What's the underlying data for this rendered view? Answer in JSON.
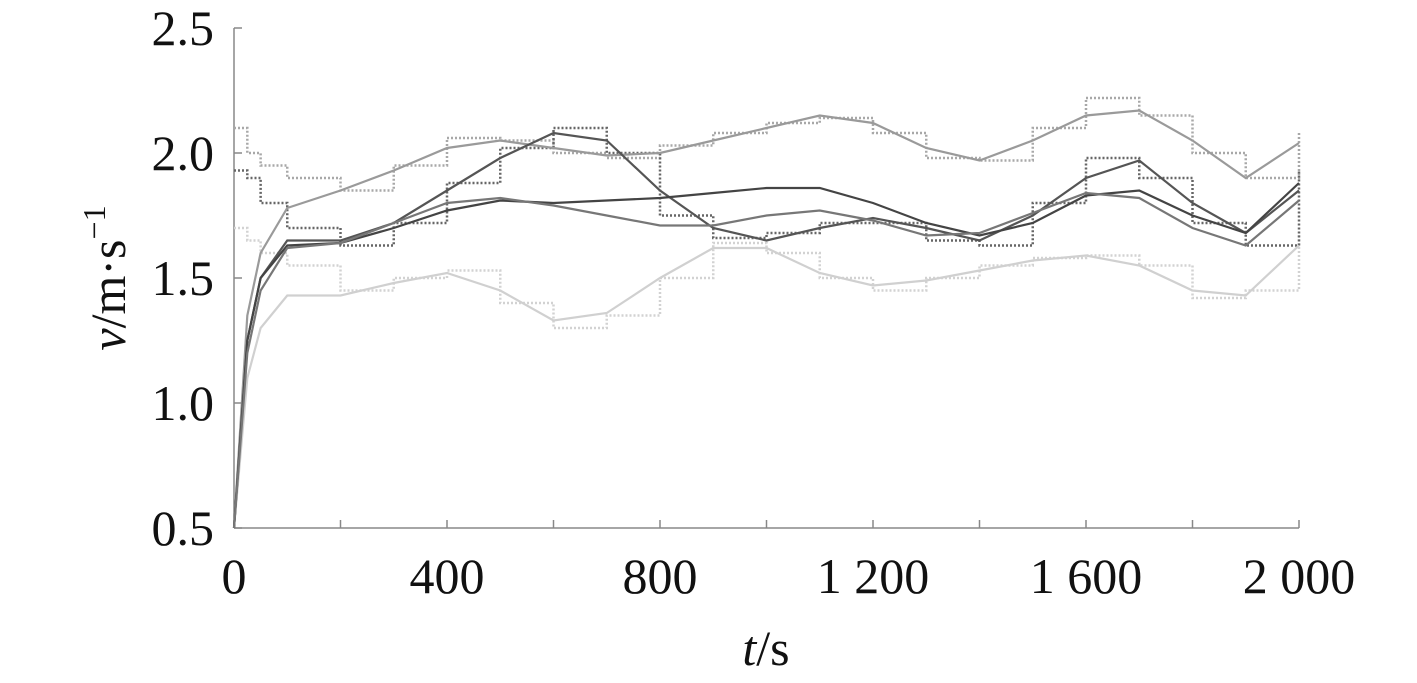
{
  "chart_data": {
    "type": "line",
    "xlabel": {
      "var": "t",
      "unit": "/s"
    },
    "ylabel": {
      "var": "v",
      "unit": "/m·s",
      "sup": "−1"
    },
    "x": [
      0,
      25,
      50,
      100,
      200,
      300,
      400,
      500,
      600,
      700,
      800,
      900,
      1000,
      1100,
      1200,
      1300,
      1400,
      1500,
      1600,
      1700,
      1800,
      1900,
      2000
    ],
    "xlim": [
      0,
      2000
    ],
    "xticks": [
      0,
      400,
      800,
      {
        "value": 1200,
        "label": "1 200"
      },
      {
        "value": 1600,
        "label": "1 600"
      },
      {
        "value": 2000,
        "label": "2 000"
      }
    ],
    "xminorticks": [
      200,
      600,
      1000,
      1400,
      1800
    ],
    "ylim": [
      0.5,
      2.5
    ],
    "yticks": [
      0.5,
      {
        "value": 1,
        "label": "1.0"
      },
      1.5,
      {
        "value": 2,
        "label": "2.0"
      },
      2.5
    ],
    "grid": false,
    "series": [
      {
        "color": "#d2d2d2",
        "dash": "dotted",
        "step": true,
        "values": [
          1.7,
          1.65,
          1.6,
          1.55,
          1.45,
          1.5,
          1.53,
          1.4,
          1.3,
          1.35,
          1.5,
          1.64,
          1.6,
          1.5,
          1.45,
          1.5,
          1.55,
          1.58,
          1.59,
          1.55,
          1.42,
          1.45,
          1.68
        ]
      },
      {
        "color": "#a8a8a8",
        "dash": "dotted",
        "step": true,
        "values": [
          2.1,
          2.0,
          1.95,
          1.9,
          1.85,
          1.95,
          2.06,
          2.05,
          2.0,
          1.98,
          2.03,
          2.08,
          2.12,
          2.14,
          2.08,
          1.98,
          1.97,
          2.1,
          2.22,
          2.15,
          2.0,
          1.9,
          2.08
        ]
      },
      {
        "color": "#666666",
        "dash": "dotted",
        "step": true,
        "values": [
          1.93,
          1.9,
          1.8,
          1.7,
          1.63,
          1.72,
          1.88,
          2.02,
          2.1,
          2.0,
          1.75,
          1.66,
          1.68,
          1.72,
          1.72,
          1.65,
          1.63,
          1.8,
          1.98,
          1.9,
          1.72,
          1.63,
          1.93
        ]
      },
      {
        "color": "#d0d0d0",
        "values": [
          0.5,
          1.1,
          1.3,
          1.43,
          1.43,
          1.48,
          1.52,
          1.45,
          1.33,
          1.36,
          1.5,
          1.62,
          1.62,
          1.52,
          1.47,
          1.49,
          1.53,
          1.57,
          1.59,
          1.55,
          1.45,
          1.43,
          1.63
        ]
      },
      {
        "color": "#9a9a9a",
        "values": [
          0.5,
          1.35,
          1.6,
          1.78,
          1.85,
          1.93,
          2.02,
          2.05,
          2.02,
          1.99,
          2.0,
          2.05,
          2.1,
          2.15,
          2.12,
          2.02,
          1.97,
          2.05,
          2.15,
          2.17,
          2.05,
          1.9,
          2.04
        ]
      },
      {
        "color": "#555555",
        "values": [
          0.5,
          1.25,
          1.5,
          1.65,
          1.65,
          1.72,
          1.85,
          1.98,
          2.08,
          2.05,
          1.85,
          1.7,
          1.65,
          1.7,
          1.74,
          1.7,
          1.65,
          1.75,
          1.9,
          1.97,
          1.8,
          1.68,
          1.85
        ]
      },
      {
        "color": "#444444",
        "values": [
          0.5,
          1.25,
          1.5,
          1.63,
          1.64,
          1.7,
          1.77,
          1.81,
          1.8,
          1.81,
          1.82,
          1.84,
          1.86,
          1.86,
          1.8,
          1.72,
          1.67,
          1.72,
          1.83,
          1.85,
          1.75,
          1.68,
          1.88
        ]
      },
      {
        "color": "#777777",
        "values": [
          0.5,
          1.2,
          1.45,
          1.62,
          1.64,
          1.72,
          1.8,
          1.82,
          1.79,
          1.75,
          1.71,
          1.71,
          1.75,
          1.77,
          1.73,
          1.67,
          1.68,
          1.76,
          1.84,
          1.82,
          1.7,
          1.63,
          1.81
        ]
      }
    ]
  }
}
